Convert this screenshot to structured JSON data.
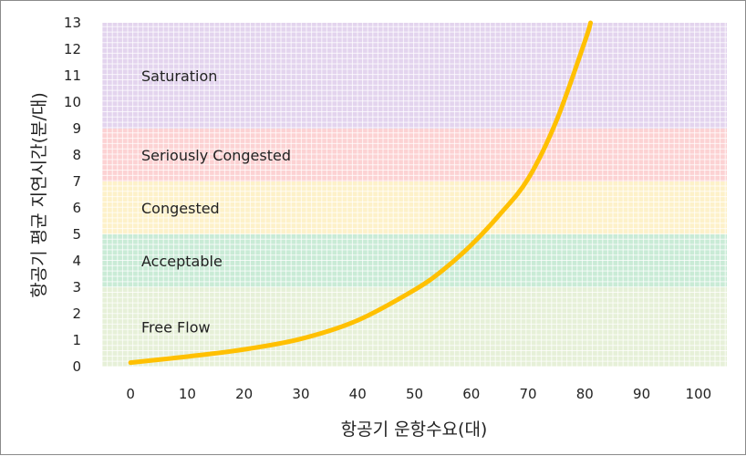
{
  "chart_data": {
    "type": "line",
    "title": "",
    "xlabel": "항공기 운항수요(대)",
    "ylabel": "항공기 평균 지연시간(분/대)",
    "xlim": [
      -5,
      105
    ],
    "ylim": [
      0,
      13
    ],
    "x_ticks": [
      "0",
      "10",
      "20",
      "30",
      "40",
      "50",
      "60",
      "70",
      "80",
      "90",
      "100"
    ],
    "y_ticks": [
      "0",
      "1",
      "2",
      "3",
      "4",
      "5",
      "6",
      "7",
      "8",
      "9",
      "10",
      "11",
      "12",
      "13"
    ],
    "grid": true,
    "bands": [
      {
        "name": "Free Flow",
        "from": 0,
        "to": 3,
        "color": "#e6f0d8"
      },
      {
        "name": "Acceptable",
        "from": 3,
        "to": 5,
        "color": "#c9ebd6"
      },
      {
        "name": "Congested",
        "from": 5,
        "to": 7,
        "color": "#fdf1c9"
      },
      {
        "name": "Seriously Congested",
        "from": 7,
        "to": 9,
        "color": "#fcd2d3"
      },
      {
        "name": "Saturation",
        "from": 9,
        "to": 13,
        "color": "#e3d4ee"
      }
    ],
    "series": [
      {
        "color": "#ffc000",
        "x": [
          0,
          10,
          20,
          30,
          40,
          50,
          55,
          60,
          65,
          70,
          75,
          80,
          81
        ],
        "y": [
          0.15,
          0.38,
          0.65,
          1.05,
          1.75,
          2.9,
          3.65,
          4.6,
          5.75,
          7.1,
          9.3,
          12.3,
          13.0
        ]
      }
    ]
  }
}
